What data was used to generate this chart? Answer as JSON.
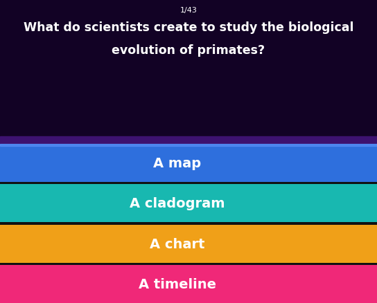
{
  "counter_text": "1/43",
  "question_line1": "What do scientists create to study the biological",
  "question_line2": "evolution of primates?",
  "bg_color_top": "#120225",
  "bg_color_mid": "#3d1270",
  "options": [
    {
      "label": "A map",
      "color": "#2e6fdd"
    },
    {
      "label": "A cladogram",
      "color": "#18b8b0"
    },
    {
      "label": "A chart",
      "color": "#f0a018"
    },
    {
      "label": "A timeline",
      "color": "#f02878"
    }
  ],
  "option_text_color": "#ffffff",
  "question_text_color": "#ffffff",
  "counter_text_color": "#ffffff",
  "fig_width": 5.44,
  "fig_height": 4.39,
  "dpi": 100
}
